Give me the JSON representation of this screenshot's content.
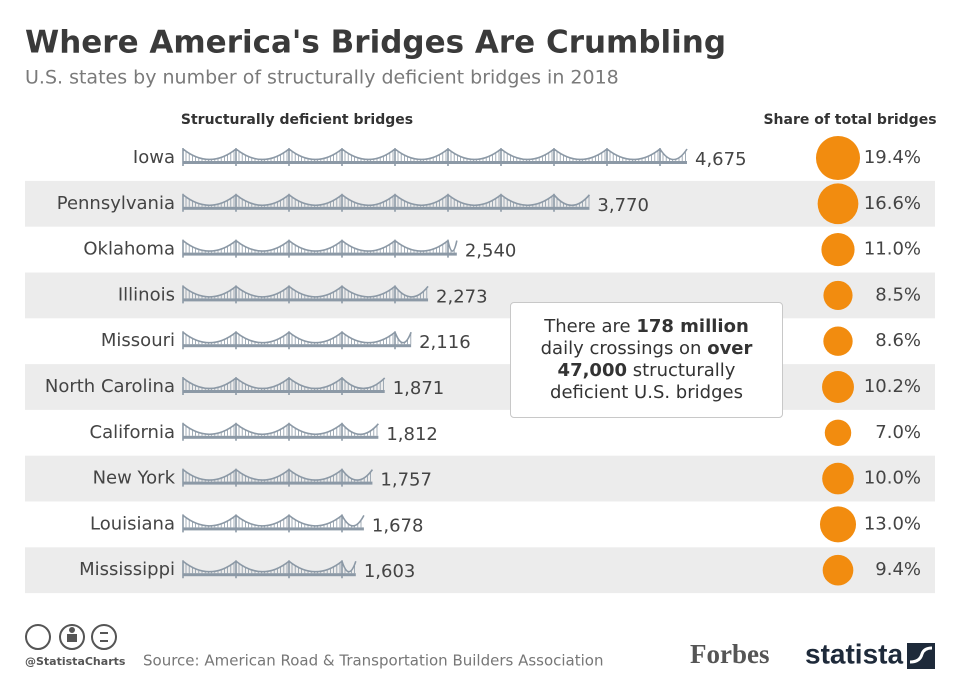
{
  "chart_data": {
    "type": "pictogram-bar",
    "title": "Where America's Bridges Are Crumbling",
    "subtitle": "U.S. states by number of structurally deficient bridges in 2018",
    "categories": [
      "Iowa",
      "Pennsylvania",
      "Oklahoma",
      "Illinois",
      "Missouri",
      "North Carolina",
      "California",
      "New York",
      "Louisiana",
      "Mississippi"
    ],
    "series": [
      {
        "name": "Structurally deficient bridges",
        "color": "#8c99a6",
        "values": [
          4675,
          3770,
          2540,
          2273,
          2116,
          1871,
          1812,
          1757,
          1678,
          1603
        ],
        "value_labels": [
          "4,675",
          "3,770",
          "2,540",
          "2,273",
          "2,116",
          "1,871",
          "1,812",
          "1,757",
          "1,678",
          "1,603"
        ]
      },
      {
        "name": "Share of total bridges",
        "color": "#f28c0f",
        "values": [
          19.4,
          16.6,
          11.0,
          8.5,
          8.6,
          10.2,
          7.0,
          10.0,
          13.0,
          9.4
        ],
        "value_labels": [
          "19.4%",
          "16.6%",
          "11.0%",
          "8.5%",
          "8.6%",
          "10.2%",
          "7.0%",
          "10.0%",
          "13.0%",
          "9.4%"
        ]
      }
    ],
    "annotation": [
      "There are ",
      "178 million",
      " daily crossings on ",
      "over 47,000",
      " structurally deficient U.S. bridges"
    ]
  },
  "footer": {
    "handle": "@StatistaCharts",
    "source": "Source: American Road & Transportation Builders Association",
    "publisher": "Forbes",
    "brand": "statista"
  }
}
